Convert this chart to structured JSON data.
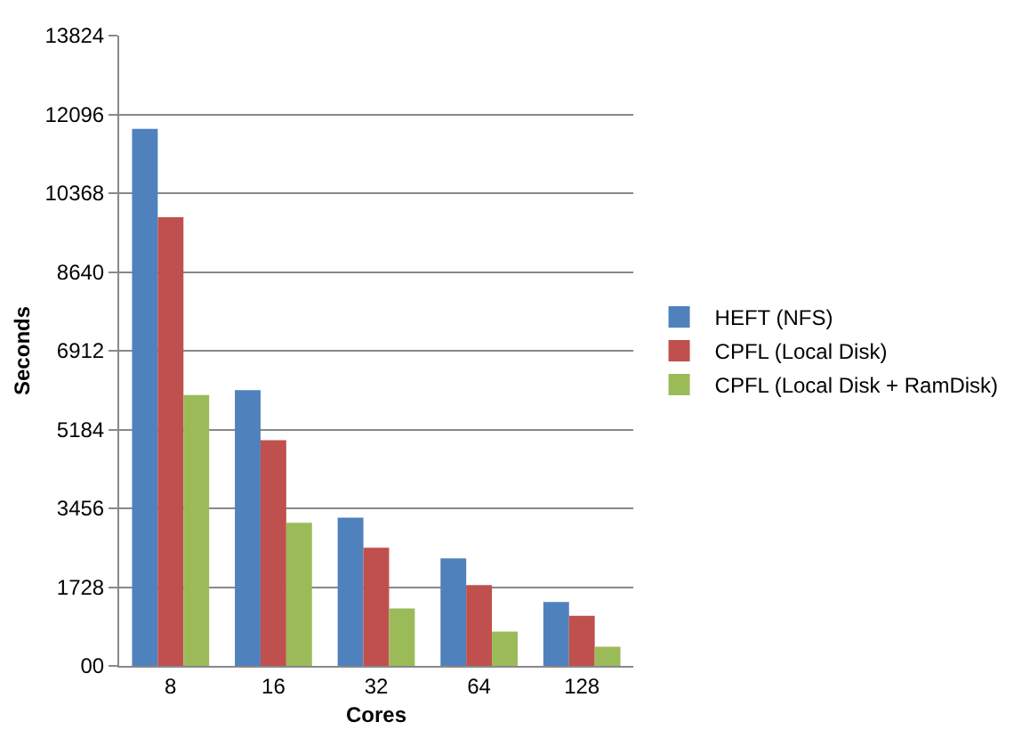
{
  "chart_data": {
    "type": "bar",
    "xlabel": "Cores",
    "ylabel": "Seconds",
    "categories": [
      "8",
      "16",
      "32",
      "64",
      "128"
    ],
    "series": [
      {
        "name": "HEFT (NFS)",
        "color": "#4f81bd",
        "values": [
          11780,
          6050,
          3250,
          2360,
          1400
        ]
      },
      {
        "name": "CPFL (Local Disk)",
        "color": "#c0504d",
        "values": [
          9840,
          4950,
          2590,
          1770,
          1100
        ]
      },
      {
        "name": "CPFL (Local Disk + RamDisk)",
        "color": "#9bbb59",
        "values": [
          5940,
          3140,
          1260,
          750,
          420
        ]
      }
    ],
    "ylim": [
      0,
      13824
    ],
    "yticks": [
      {
        "value": 0,
        "label": "00"
      },
      1728,
      3456,
      5184,
      6912,
      8640,
      10368,
      12096,
      13824
    ],
    "grid": "y",
    "legend": "right"
  }
}
